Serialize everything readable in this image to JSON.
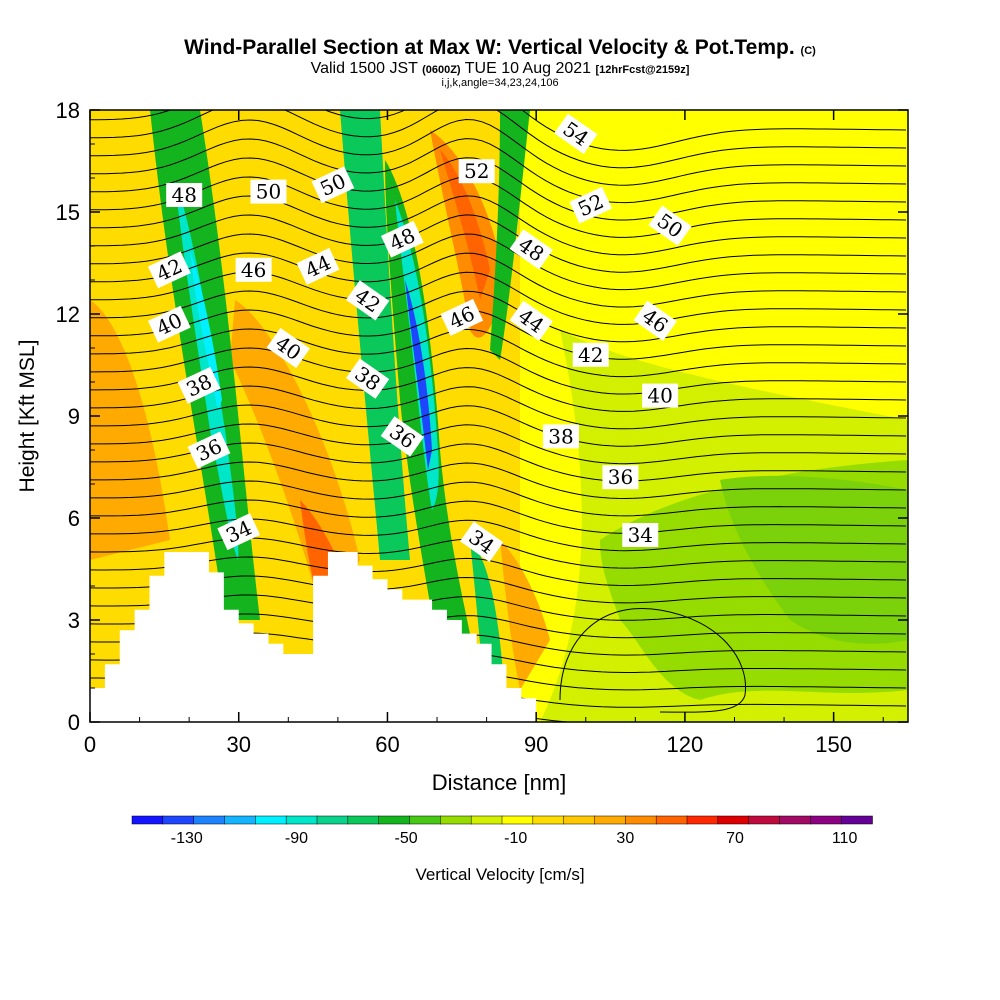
{
  "titles": {
    "main": "Wind-Parallel Section at Max W: Vertical Velocity & Pot.Temp.",
    "main_tag": "(C)",
    "valid_a": "Valid 1500 JST",
    "valid_b_small": "(0600Z)",
    "valid_c": "TUE 10 Aug 2021",
    "valid_d_small": "[12hrFcst@2159z]",
    "indices": "i,j,k,angle=34,23,24,106"
  },
  "chart_data": {
    "type": "heatmap",
    "xlabel": "Distance [nm]",
    "ylabel": "Height [Kft MSL]",
    "xlim": [
      0,
      165
    ],
    "ylim": [
      0,
      18
    ],
    "x_ticks": [
      "0",
      "30",
      "60",
      "90",
      "120",
      "150"
    ],
    "y_ticks": [
      "0",
      "3",
      "6",
      "9",
      "12",
      "15",
      "18"
    ],
    "colorbar": {
      "label": "Vertical Velocity [cm/s]",
      "tick_labels": [
        "-130",
        "-90",
        "-50",
        "-10",
        "30",
        "70",
        "110"
      ],
      "colors": [
        "#1414ff",
        "#1e46ff",
        "#1e82ff",
        "#14b4ff",
        "#00f0ff",
        "#00e6c8",
        "#0ad28c",
        "#0ac85a",
        "#14b41e",
        "#46c814",
        "#96dc00",
        "#d2f000",
        "#ffff00",
        "#ffdc00",
        "#ffc800",
        "#ffaa00",
        "#ff8c00",
        "#ff6400",
        "#ff2800",
        "#dc0000",
        "#be0a3c",
        "#a00a64",
        "#8c0082",
        "#640096"
      ]
    },
    "theta_contour_labels": [
      {
        "text": "34",
        "x": 30,
        "y": 5.6
      },
      {
        "text": "34",
        "x": 79,
        "y": 5.3
      },
      {
        "text": "34",
        "x": 111,
        "y": 5.5
      },
      {
        "text": "36",
        "x": 24,
        "y": 8.0
      },
      {
        "text": "36",
        "x": 63,
        "y": 8.4
      },
      {
        "text": "36",
        "x": 107,
        "y": 7.2
      },
      {
        "text": "38",
        "x": 22,
        "y": 9.9
      },
      {
        "text": "38",
        "x": 56,
        "y": 10.1
      },
      {
        "text": "38",
        "x": 95,
        "y": 8.4
      },
      {
        "text": "40",
        "x": 16,
        "y": 11.7
      },
      {
        "text": "40",
        "x": 40,
        "y": 11.0
      },
      {
        "text": "40",
        "x": 115,
        "y": 9.6
      },
      {
        "text": "42",
        "x": 16,
        "y": 13.3
      },
      {
        "text": "42",
        "x": 56,
        "y": 12.4
      },
      {
        "text": "42",
        "x": 101,
        "y": 10.8
      },
      {
        "text": "44",
        "x": 46,
        "y": 13.4
      },
      {
        "text": "44",
        "x": 89,
        "y": 11.8
      },
      {
        "text": "46",
        "x": 33,
        "y": 13.3
      },
      {
        "text": "46",
        "x": 75,
        "y": 11.9
      },
      {
        "text": "46",
        "x": 114,
        "y": 11.8
      },
      {
        "text": "48",
        "x": 19,
        "y": 15.5
      },
      {
        "text": "48",
        "x": 63,
        "y": 14.2
      },
      {
        "text": "48",
        "x": 89,
        "y": 13.9
      },
      {
        "text": "50",
        "x": 36,
        "y": 15.6
      },
      {
        "text": "50",
        "x": 49,
        "y": 15.8
      },
      {
        "text": "50",
        "x": 117,
        "y": 14.6
      },
      {
        "text": "52",
        "x": 78,
        "y": 16.2
      },
      {
        "text": "52",
        "x": 101,
        "y": 15.2
      },
      {
        "text": "54",
        "x": 98,
        "y": 17.3
      }
    ]
  }
}
